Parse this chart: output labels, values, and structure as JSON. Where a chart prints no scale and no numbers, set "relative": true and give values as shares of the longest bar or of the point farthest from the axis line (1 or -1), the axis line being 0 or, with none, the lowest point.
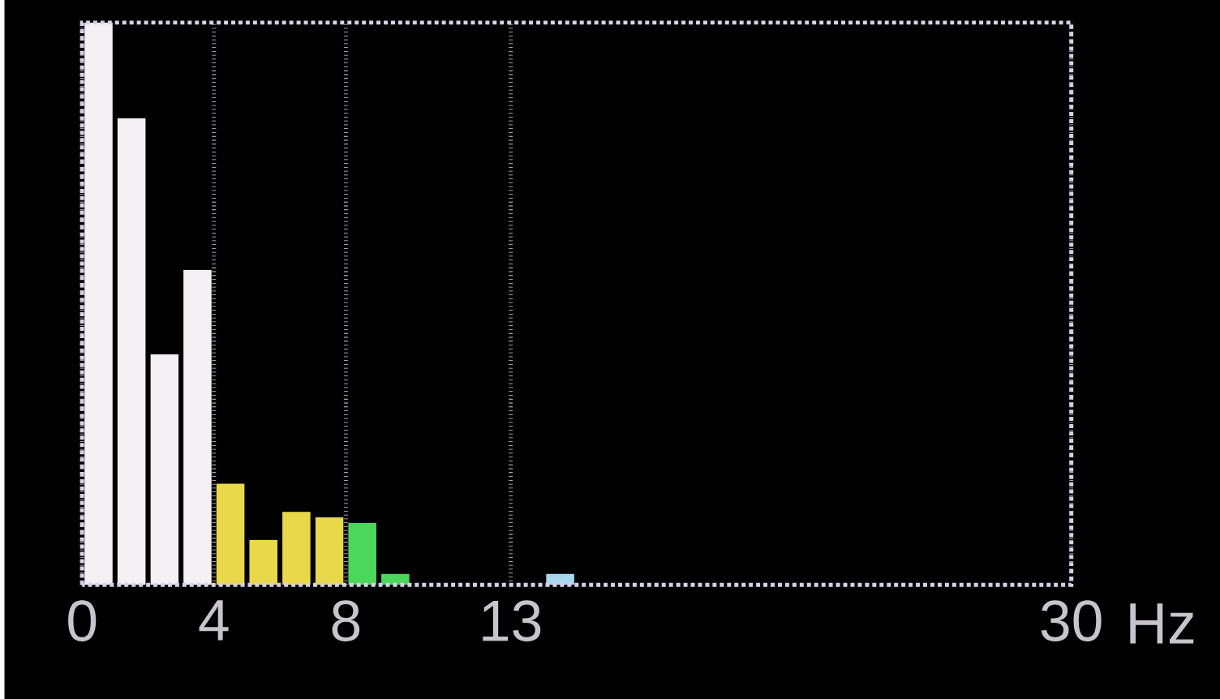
{
  "chart_data": {
    "type": "bar",
    "relative": true,
    "x": [
      0.5,
      1.5,
      2.5,
      3.5,
      4.5,
      5.5,
      6.5,
      7.5,
      8.5,
      9.5,
      14.5
    ],
    "values": [
      1,
      0.83,
      0.41,
      0.56,
      0.18,
      0.08,
      0.13,
      0.12,
      0.11,
      0.02,
      0.02
    ],
    "colors": [
      "#f4f0f4",
      "#f4f0f4",
      "#f4f0f4",
      "#f4f0f4",
      "#e8d84a",
      "#e8d84a",
      "#e8d84a",
      "#e8d84a",
      "#4cd65a",
      "#4cd65a",
      "#a8d8f0"
    ],
    "xlim": [
      0,
      30
    ],
    "xticks": [
      {
        "value": 0,
        "label": "0"
      },
      {
        "value": 4,
        "label": "4"
      },
      {
        "value": 8,
        "label": "8"
      },
      {
        "value": 13,
        "label": "13"
      },
      {
        "value": 30,
        "label": "30"
      }
    ],
    "xlabel": "Hz",
    "grid": "x",
    "tick_labels": "x"
  }
}
